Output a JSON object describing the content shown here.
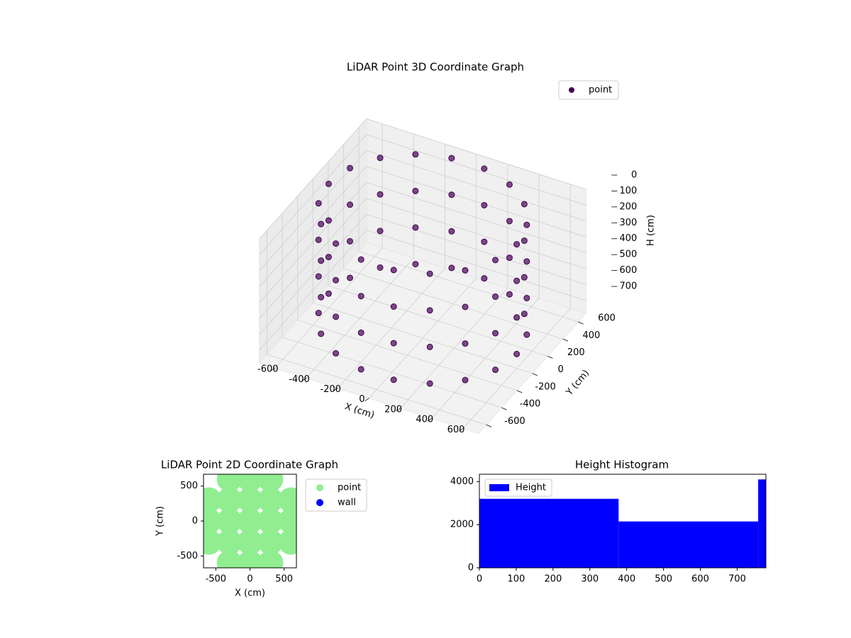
{
  "chart_data": [
    {
      "type": "scatter3d",
      "title": "LiDAR Point 3D Coordinate Graph",
      "x_label": "X (cm)",
      "y_label": "Y (cm)",
      "z_label": "H (cm)",
      "xlim": [
        -700,
        700
      ],
      "ylim": [
        -700,
        700
      ],
      "zlim": [
        0,
        780
      ],
      "z_inverted": true,
      "xticks": [
        -600,
        -400,
        -200,
        0,
        200,
        400,
        600
      ],
      "yticks": [
        -600,
        -400,
        -200,
        0,
        200,
        400,
        600
      ],
      "zticks": [
        0,
        100,
        200,
        300,
        400,
        500,
        600,
        700
      ],
      "grid": true,
      "legend": "upper right",
      "series": [
        {
          "name": "point",
          "color": "#440154",
          "x": [
            600,
            564,
            460,
            300,
            104,
            -104,
            -300,
            -460,
            -564,
            -600,
            -564,
            -460,
            -300,
            -104,
            104,
            300,
            460,
            564,
            600,
            564,
            460,
            300,
            104,
            -104,
            -300,
            -460,
            -564,
            -600,
            -564,
            -460,
            -300,
            -104,
            104,
            300,
            460,
            564,
            600,
            564,
            460,
            300,
            104,
            -104,
            -300,
            -460,
            -564,
            -600,
            -564,
            -460,
            -300,
            -104,
            104,
            300,
            460,
            564,
            600,
            564,
            460,
            300,
            104,
            -104,
            -300,
            -460,
            -564,
            -600,
            -564,
            -460,
            -300,
            -104,
            104,
            300,
            460,
            564
          ],
          "y": [
            0,
            205,
            386,
            520,
            591,
            591,
            520,
            386,
            205,
            0,
            -205,
            -386,
            -520,
            -591,
            -591,
            -520,
            -386,
            -205,
            0,
            205,
            386,
            520,
            591,
            591,
            520,
            386,
            205,
            0,
            -205,
            -386,
            -520,
            -591,
            -591,
            -520,
            -386,
            -205,
            0,
            205,
            386,
            520,
            591,
            591,
            520,
            386,
            205,
            0,
            -205,
            -386,
            -520,
            -591,
            -591,
            -520,
            -386,
            -205,
            0,
            205,
            386,
            520,
            591,
            591,
            520,
            386,
            205,
            0,
            -205,
            -386,
            -520,
            -591,
            -591,
            -520,
            -386,
            -205
          ],
          "h": [
            0,
            0,
            0,
            0,
            0,
            0,
            0,
            0,
            0,
            0,
            0,
            0,
            0,
            0,
            0,
            0,
            0,
            0,
            230,
            230,
            230,
            230,
            230,
            230,
            230,
            230,
            230,
            230,
            230,
            230,
            230,
            230,
            230,
            230,
            230,
            230,
            460,
            460,
            460,
            460,
            460,
            460,
            460,
            460,
            460,
            460,
            460,
            460,
            460,
            460,
            460,
            460,
            460,
            460,
            690,
            690,
            690,
            690,
            690,
            690,
            690,
            690,
            690,
            690,
            690,
            690,
            690,
            690,
            690,
            690,
            690,
            690
          ]
        }
      ]
    },
    {
      "type": "scatter",
      "title": "LiDAR Point 2D Coordinate Graph",
      "x_label": "X (cm)",
      "y_label": "Y (cm)",
      "xlim": [
        -680,
        680
      ],
      "ylim": [
        -670,
        670
      ],
      "xticks": [
        -500,
        0,
        500
      ],
      "yticks": [
        -500,
        0,
        500
      ],
      "legend": "outside right",
      "series": [
        {
          "name": "point",
          "color": "#90ee90",
          "x": [
            0,
            300,
            -300,
            0,
            0,
            300,
            300,
            -300,
            -300,
            600,
            -600,
            0,
            0,
            600,
            600,
            -600,
            -600,
            300,
            300,
            -300,
            -300
          ],
          "y": [
            0,
            0,
            0,
            300,
            -300,
            300,
            -300,
            300,
            -300,
            0,
            0,
            600,
            -600,
            300,
            -300,
            300,
            -300,
            600,
            -600,
            600,
            -600
          ]
        },
        {
          "name": "wall",
          "color": "#0000ff",
          "x": [],
          "y": []
        }
      ]
    },
    {
      "type": "histogram",
      "title": "Height Histogram",
      "bins": [
        0,
        378,
        757,
        778
      ],
      "counts": [
        3200,
        2150,
        4100
      ],
      "name": "Height",
      "color": "#0000ff",
      "legend": "upper left",
      "xlim": [
        0,
        778
      ],
      "ylim": [
        0,
        4340
      ],
      "xticks": [
        0,
        100,
        200,
        300,
        400,
        500,
        600,
        700
      ],
      "yticks": [
        0,
        2000,
        4000
      ]
    }
  ]
}
